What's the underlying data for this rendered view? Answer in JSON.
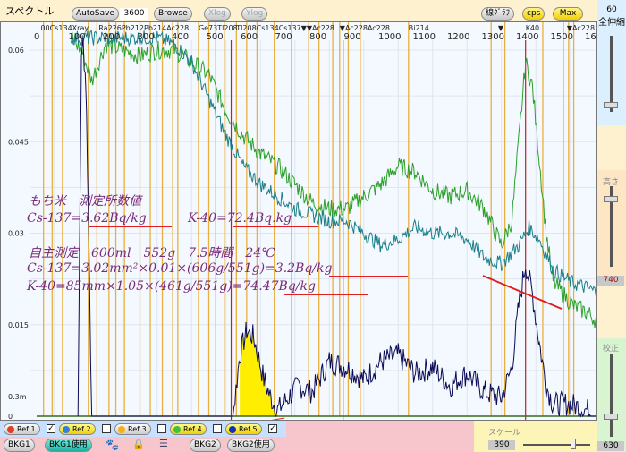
{
  "toolbar": {
    "title": "スペクトル",
    "autosave": "AutoSave",
    "time": "3600",
    "browse": "Browse",
    "xlog": "Xlog",
    "ylog": "Ylog",
    "line_graph": "線ｸﾞﾗﾌ",
    "cps": "cps",
    "max": "Max"
  },
  "right_panel": {
    "zoom_value": "60",
    "zoom_label": "全伸縮",
    "height_label": "高さ",
    "height_value": "740",
    "calib_label": "校正",
    "calib_value": "630",
    "zoom_level": 0.9,
    "height_level": 0.15,
    "calib_level": 0.75
  },
  "bottom": {
    "refs": [
      {
        "label": "Ref 1",
        "color": "#e04020",
        "checked": true
      },
      {
        "label": "Ref 2",
        "color": "#3080e0",
        "checked": false
      },
      {
        "label": "Ref 3",
        "color": "#f0b020",
        "checked": false
      },
      {
        "label": "Ref 4",
        "color": "#40c040",
        "checked": false
      },
      {
        "label": "Ref 5",
        "color": "#1030c0",
        "checked": true
      }
    ],
    "bkg1": "BKG1",
    "bkg1_use": "BKG1使用",
    "bkg2": "BKG2",
    "bkg2_use": "BKG2使用",
    "scale_label": "スケール",
    "scale_value": "390",
    "scale_level": 0.75
  },
  "annotation": {
    "line1": "もち米　測定所数値",
    "line2a": "Cs-137=3.62Bq/kg",
    "line2b": "K-40=72.4Bq.kg",
    "line3": "自主測定　600ml　552g　7.5時間　24℃",
    "line4": "Cs-137=3.02mm²×0.01×(606g/551g)=3.2Bq/kg",
    "line5": "K-40=85mm×1.05×(461g/551g)=74.47Bq/kg"
  },
  "chart_data": {
    "type": "line",
    "xlim": [
      0,
      1650
    ],
    "ylim": [
      0,
      0.062
    ],
    "x_ticks": [
      0,
      100,
      200,
      300,
      400,
      500,
      600,
      700,
      800,
      900,
      1000,
      1100,
      1200,
      1300,
      1400,
      1500,
      1600
    ],
    "y_ticks": [
      "0",
      "0.3m",
      "0.015",
      "0.03",
      "0.045",
      "0.06"
    ],
    "y_tick_values": [
      0,
      0.0015,
      0.015,
      0.03,
      0.045,
      0.06
    ],
    "peak_labels": [
      {
        "text": ".00Cs134Xray",
        "ch": 5
      },
      {
        "text": "Ra226Pb212Pb214Ac228",
        "ch": 180
      },
      {
        "text": "Ge73Tl208",
        "ch": 470
      },
      {
        "text": "Tl208Cs134Cs137▼▼",
        "ch": 580
      },
      {
        "text": "Ac228",
        "ch": 800
      },
      {
        "text": "▼Ac228Ac228",
        "ch": 880
      },
      {
        "text": "Bi214",
        "ch": 1080
      },
      {
        "text": "▼",
        "ch": 1340
      },
      {
        "text": "K40",
        "ch": 1420
      },
      {
        "text": "▼Ac228",
        "ch": 1540
      }
    ],
    "orange_lines": [
      20,
      45,
      75,
      150,
      175,
      210,
      230,
      255,
      300,
      330,
      365,
      395,
      410,
      470,
      500,
      520,
      545,
      580,
      610,
      640,
      690,
      740,
      790,
      820,
      860,
      880,
      905,
      940,
      1080,
      1320,
      1360,
      1470,
      1530,
      1545,
      1560,
      1640
    ],
    "red_lines": [
      565,
      890,
      1420
    ],
    "series": [
      {
        "color": "#2aa02a",
        "x": [
          100,
          130,
          160,
          200,
          250,
          300,
          350,
          400,
          450,
          500,
          550,
          600,
          650,
          700,
          750,
          800,
          850,
          900,
          950,
          1000,
          1050,
          1100,
          1150,
          1200,
          1250,
          1300,
          1350,
          1380,
          1400,
          1420,
          1440,
          1460,
          1480,
          1500,
          1530,
          1560,
          1600,
          1640
        ],
        "y": [
          0.062,
          0.06,
          0.055,
          0.061,
          0.06,
          0.059,
          0.06,
          0.06,
          0.058,
          0.056,
          0.05,
          0.046,
          0.043,
          0.041,
          0.038,
          0.035,
          0.034,
          0.034,
          0.036,
          0.038,
          0.041,
          0.04,
          0.037,
          0.036,
          0.037,
          0.034,
          0.028,
          0.032,
          0.045,
          0.058,
          0.054,
          0.042,
          0.03,
          0.022,
          0.02,
          0.018,
          0.017,
          0.015
        ]
      },
      {
        "color": "#1a7f8a",
        "x": [
          100,
          150,
          200,
          250,
          300,
          350,
          400,
          450,
          500,
          550,
          600,
          650,
          700,
          750,
          800,
          850,
          900,
          950,
          1000,
          1050,
          1100,
          1150,
          1200,
          1250,
          1300,
          1350,
          1400,
          1430,
          1460,
          1500,
          1550,
          1600,
          1640
        ],
        "y": [
          0.062,
          0.062,
          0.062,
          0.062,
          0.062,
          0.062,
          0.061,
          0.058,
          0.052,
          0.046,
          0.041,
          0.038,
          0.036,
          0.034,
          0.033,
          0.032,
          0.032,
          0.03,
          0.028,
          0.029,
          0.031,
          0.03,
          0.03,
          0.029,
          0.026,
          0.025,
          0.028,
          0.031,
          0.029,
          0.024,
          0.022,
          0.021,
          0.02
        ]
      },
      {
        "color": "#0b0b55",
        "x": [
          120,
          130,
          135,
          145,
          160,
          200,
          300,
          400,
          500,
          570,
          590,
          610,
          630,
          660,
          680,
          700,
          730,
          760,
          800,
          850,
          900,
          950,
          1000,
          1050,
          1100,
          1150,
          1200,
          1250,
          1300,
          1350,
          1380,
          1400,
          1420,
          1440,
          1460,
          1480,
          1500,
          1550,
          1600,
          1640
        ],
        "y": [
          0,
          0.06,
          0.062,
          0.05,
          0,
          0,
          0,
          0,
          0,
          0,
          0.01,
          0.014,
          0.013,
          0.006,
          0.003,
          0.001,
          0.003,
          0.005,
          0.004,
          0.009,
          0.008,
          0.006,
          0.009,
          0.01,
          0.007,
          0.008,
          0.005,
          0.007,
          0.004,
          0.003,
          0.008,
          0.018,
          0.025,
          0.02,
          0.012,
          0.005,
          0.002,
          0.002,
          0.001,
          0
        ]
      }
    ],
    "filled_region": {
      "color": "#ffee00",
      "x_range": [
        590,
        700
      ]
    }
  }
}
